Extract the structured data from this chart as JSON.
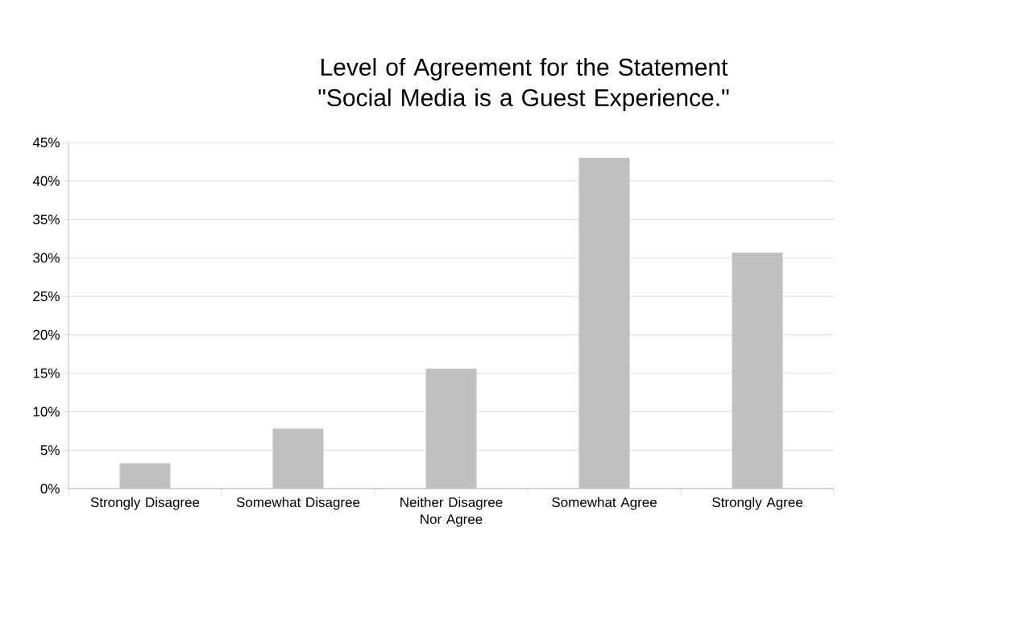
{
  "chart_data": {
    "type": "bar",
    "title": "Level of Agreement for the Statement \"Social Media is a Guest Experience.\"",
    "categories": [
      "Strongly Disagree",
      "Somewhat Disagree",
      "Neither Disagree Nor Agree",
      "Somewhat Agree",
      "Strongly Agree"
    ],
    "values": [
      3.3,
      7.8,
      15.6,
      43.0,
      30.7
    ],
    "color": "#c0c0c0",
    "ylim": [
      0,
      45
    ],
    "yticks": [
      {
        "value": 0,
        "label": "0%"
      },
      {
        "value": 5,
        "label": "5%"
      },
      {
        "value": 10,
        "label": "10%"
      },
      {
        "value": 15,
        "label": "15%"
      },
      {
        "value": 20,
        "label": "20%"
      },
      {
        "value": 25,
        "label": "25%"
      },
      {
        "value": 30,
        "label": "30%"
      },
      {
        "value": 35,
        "label": "35%"
      },
      {
        "value": 40,
        "label": "40%"
      },
      {
        "value": 45,
        "label": "45%"
      }
    ],
    "grid": "y"
  }
}
